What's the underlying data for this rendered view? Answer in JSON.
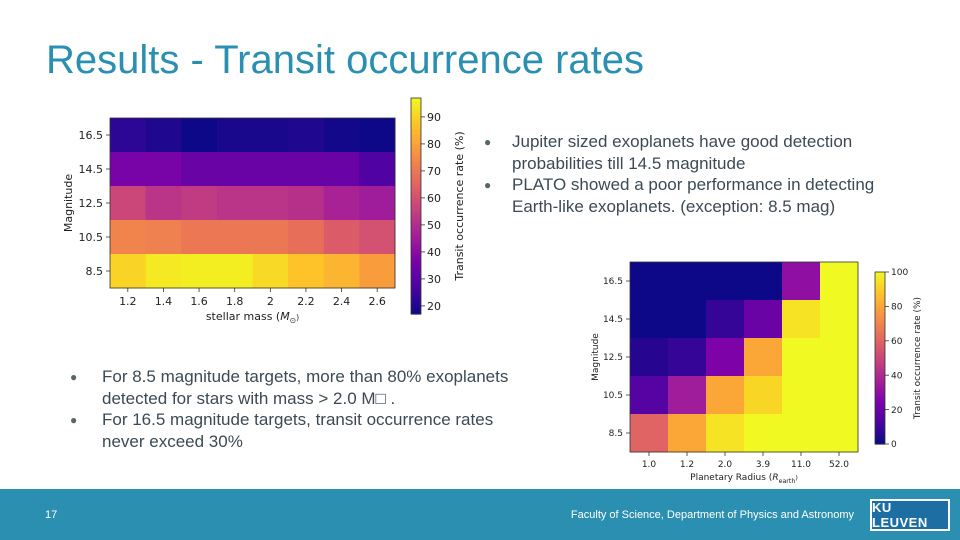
{
  "slide": {
    "title": "Results - Transit occurrence rates",
    "page_number": "17",
    "footer_text": "Faculty of Science, Department of Physics and Astronomy",
    "logo_text": "KU LEUVEN",
    "bullets_right": [
      "Jupiter sized exoplanets have good detection probabilities till 14.5 magnitude",
      "PLATO showed a poor performance in detecting Earth-like exoplanets. (exception: 8.5 mag)"
    ],
    "bullets_left": [
      " For 8.5 magnitude targets, more than 80% exoplanets detected for stars with mass > 2.0 M□ .",
      "For 16.5 magnitude targets, transit occurrence rates never exceed 30%"
    ],
    "colors": {
      "accent": "#2a8fb0",
      "footer": "#2a8fb0"
    }
  },
  "chart_data": [
    {
      "type": "heatmap",
      "colormap": "plasma",
      "xlabel": "stellar mass (M⊙)",
      "ylabel": "Magnitude",
      "colorbar_label": "Transit occurrence rate (%)",
      "x": [
        "1.2",
        "1.4",
        "1.6",
        "1.8",
        "2",
        "2.2",
        "2.4",
        "2.6"
      ],
      "y": [
        "16.5",
        "14.5",
        "12.5",
        "10.5",
        "8.5"
      ],
      "z": [
        [
          22,
          20,
          17,
          19,
          19,
          20,
          18,
          16
        ],
        [
          36,
          36,
          33,
          33,
          33,
          33,
          33,
          28
        ],
        [
          57,
          52,
          54,
          52,
          52,
          51,
          47,
          45
        ],
        [
          73,
          72,
          70,
          70,
          70,
          68,
          63,
          60
        ],
        [
          90,
          94,
          95,
          95,
          91,
          87,
          84,
          79
        ]
      ],
      "zlim": [
        17,
        97
      ],
      "colorbar_ticks": [
        20,
        30,
        40,
        50,
        60,
        70,
        80,
        90
      ]
    },
    {
      "type": "heatmap",
      "colormap": "plasma",
      "xlabel": "Planetary Radius (R_earth)",
      "ylabel": "Magnitude",
      "colorbar_label": "Transit occurrence rate (%)",
      "x": [
        "1.0",
        "1.2",
        "2.0",
        "3.9",
        "11.0",
        "52.0"
      ],
      "y": [
        "16.5",
        "14.5",
        "12.5",
        "10.5",
        "8.5"
      ],
      "z": [
        [
          0,
          0,
          0,
          0,
          30,
          100
        ],
        [
          0,
          0,
          8,
          20,
          95,
          100
        ],
        [
          5,
          8,
          25,
          80,
          100,
          100
        ],
        [
          15,
          35,
          80,
          92,
          100,
          100
        ],
        [
          60,
          80,
          95,
          100,
          100,
          100
        ]
      ],
      "zlim": [
        0,
        100
      ],
      "colorbar_ticks": [
        0,
        20,
        40,
        60,
        80,
        100
      ]
    }
  ]
}
